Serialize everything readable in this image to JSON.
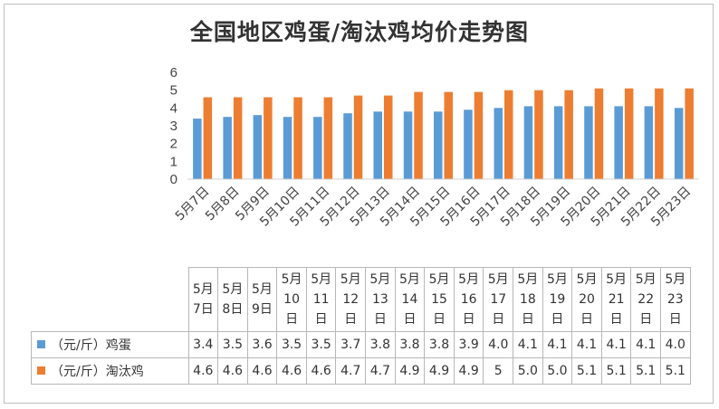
{
  "title": "全国地区鸡蛋/淘汰鸡均价走势图",
  "chart_data": {
    "type": "bar",
    "title": "全国地区鸡蛋/淘汰鸡均价走势图",
    "categories": [
      "5月7日",
      "5月8日",
      "5月9日",
      "5月10日",
      "5月11日",
      "5月12日",
      "5月13日",
      "5月14日",
      "5月15日",
      "5月16日",
      "5月17日",
      "5月18日",
      "5月19日",
      "5月20日",
      "5月21日",
      "5月22日",
      "5月23日"
    ],
    "ylim": [
      0,
      6
    ],
    "yticks": [
      "0",
      "1",
      "2",
      "3",
      "4",
      "5",
      "6"
    ],
    "series": [
      {
        "name": "（元/斤）鸡蛋",
        "color": "#5b9bd5",
        "values": [
          3.4,
          3.5,
          3.6,
          3.5,
          3.5,
          3.7,
          3.8,
          3.8,
          3.8,
          3.9,
          4.0,
          4.1,
          4.1,
          4.1,
          4.1,
          4.1,
          4.0
        ],
        "labels": [
          "3.4",
          "3.5",
          "3.6",
          "3.5",
          "3.5",
          "3.7",
          "3.8",
          "3.8",
          "3.8",
          "3.9",
          "4.0",
          "4.1",
          "4.1",
          "4.1",
          "4.1",
          "4.1",
          "4.0"
        ]
      },
      {
        "name": "（元/斤）淘汰鸡",
        "color": "#ed7d31",
        "values": [
          4.6,
          4.6,
          4.6,
          4.6,
          4.6,
          4.7,
          4.7,
          4.9,
          4.9,
          4.9,
          5,
          5.0,
          5.0,
          5.1,
          5.1,
          5.1,
          5.1
        ],
        "labels": [
          "4.6",
          "4.6",
          "4.6",
          "4.6",
          "4.6",
          "4.7",
          "4.7",
          "4.9",
          "4.9",
          "4.9",
          "5",
          "5.0",
          "5.0",
          "5.1",
          "5.1",
          "5.1",
          "5.1"
        ]
      }
    ],
    "grid": false,
    "legend": "data-table"
  }
}
